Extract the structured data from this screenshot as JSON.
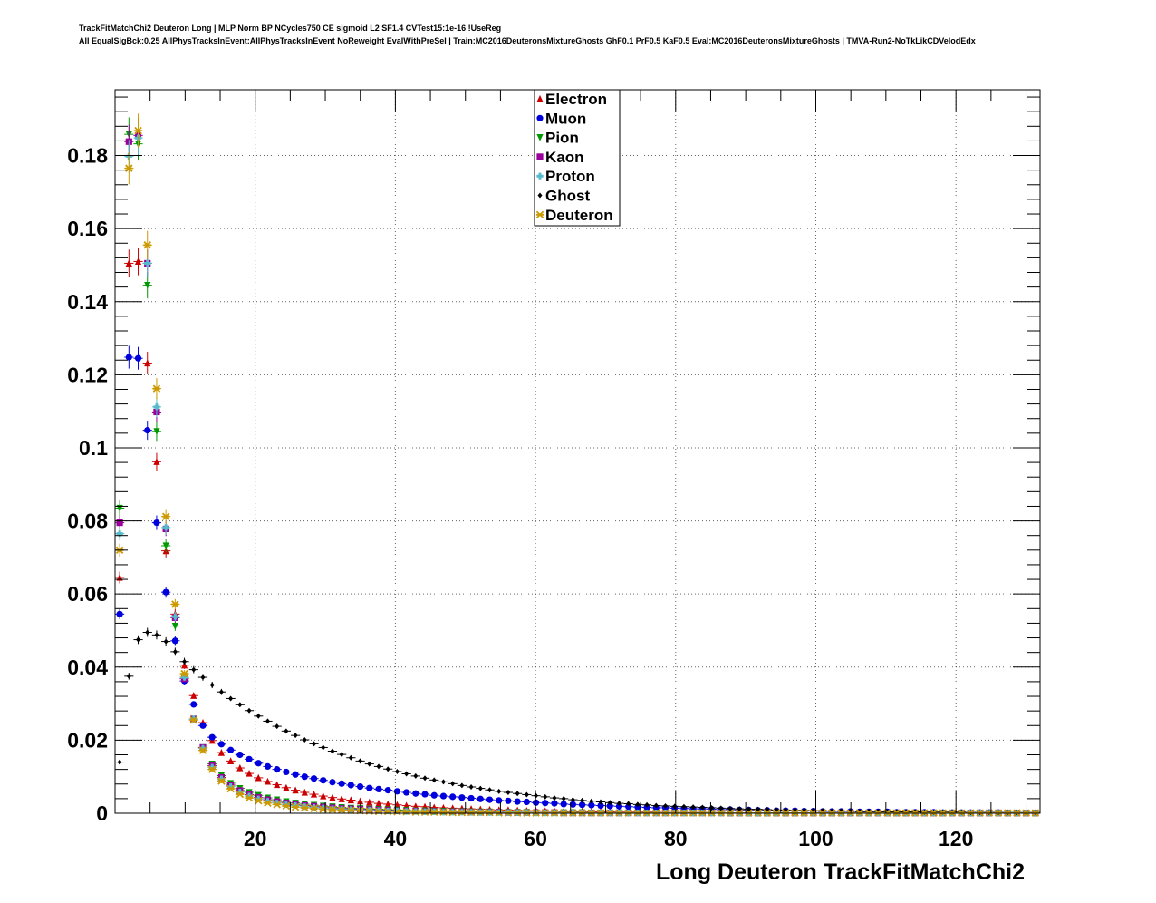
{
  "chart_data": {
    "type": "scatter",
    "title_line1": "TrackFitMatchChi2 Deuteron Long | MLP Norm BP NCycles750 CE sigmoid L2 SF1.4 CVTest15:1e-16 !UseReg",
    "title_line2": "All EqualSigBck:0.25 AllPhysTracksInEvent:AllPhysTracksInEvent NoReweight EvalWithPreSel | Train:MC2016DeuteronsMixtureGhosts GhF0.1 PrF0.5 KaF0.5 Eval:MC2016DeuteronsMixtureGhosts | TMVA-Run2-NoTkLikCDVelodEdx",
    "xlabel": "Long Deuteron TrackFitMatchChi2",
    "ylabel": "",
    "xlim": [
      0,
      132
    ],
    "ylim": [
      0,
      0.198
    ],
    "xticks": [
      20,
      40,
      60,
      80,
      100,
      120
    ],
    "xtick_labels": [
      "20",
      "40",
      "60",
      "80",
      "100",
      "120"
    ],
    "yticks": [
      0,
      0.02,
      0.04,
      0.06,
      0.08,
      0.1,
      0.12,
      0.14,
      0.16,
      0.18
    ],
    "ytick_labels": [
      "0",
      "0.02",
      "0.04",
      "0.06",
      "0.08",
      "0.1",
      "0.12",
      "0.14",
      "0.16",
      "0.18"
    ],
    "grid": true,
    "legend_position": "top-center",
    "bin_width": 1.32,
    "x": [
      0.66,
      1.98,
      3.3,
      4.62,
      5.94,
      7.26,
      8.58,
      9.9,
      11.22,
      12.54,
      13.86,
      15.18,
      16.5,
      17.82,
      19.14,
      20.46,
      21.78,
      23.1,
      24.42,
      25.74,
      27.06,
      28.38,
      29.7,
      31.02,
      32.34,
      33.66,
      34.98,
      36.3,
      37.62,
      38.94,
      40.26,
      41.58,
      42.9,
      44.22,
      45.54,
      46.86,
      48.18,
      49.5,
      50.82,
      52.14,
      53.46,
      54.78,
      56.1,
      57.42,
      58.74,
      60.06,
      61.38,
      62.7,
      64.02,
      65.34,
      66.66,
      67.98,
      69.3,
      70.62,
      71.94,
      73.26,
      74.58,
      75.9,
      77.22,
      78.54,
      79.86,
      81.18,
      82.5,
      83.82,
      85.14,
      86.46,
      87.78,
      89.1,
      90.42,
      91.74,
      93.06,
      94.38,
      95.7,
      97.02,
      98.34,
      99.66,
      100.98,
      102.3,
      103.62,
      104.94,
      106.26,
      107.58,
      108.9,
      110.22,
      111.54,
      112.86,
      114.18,
      115.5,
      116.82,
      118.14,
      119.46,
      120.78,
      122.1,
      123.42,
      124.74,
      126.06,
      127.38,
      128.7,
      130.02,
      131.34
    ],
    "series": [
      {
        "name": "Electron",
        "color": "#cc0000",
        "marker": "triangle-up",
        "values": [
          0.0645,
          0.1505,
          0.151,
          0.1232,
          0.0962,
          0.0718,
          0.0545,
          0.0405,
          0.0322,
          0.0248,
          0.0199,
          0.0166,
          0.0143,
          0.0124,
          0.0109,
          0.0097,
          0.0087,
          0.0078,
          0.007,
          0.0063,
          0.0057,
          0.0052,
          0.0047,
          0.0043,
          0.0039,
          0.0036,
          0.0033,
          0.003,
          0.0027,
          0.0025,
          0.0023,
          0.0021,
          0.0019,
          0.0018,
          0.0016,
          0.0015,
          0.0014,
          0.0013,
          0.0012,
          0.0011,
          0.001,
          0.0009,
          0.0009,
          0.0008,
          0.0007,
          0.0007,
          0.0006,
          0.0006,
          0.0005,
          0.0005,
          0.0005,
          0.0004,
          0.0004,
          0.0004,
          0.0003,
          0.0003,
          0.0003,
          0.0003,
          0.0003,
          0.0002,
          0.0002,
          0.0002,
          0.0002,
          0.0002,
          0.0002,
          0.0002,
          0.0001,
          0.0001,
          0.0001,
          0.0001,
          0.0001,
          0.0001,
          0.0001,
          0.0001,
          0.0001,
          0.0001,
          0.0001,
          0.0001,
          0.0001,
          0.0001,
          0.0001,
          0.0001,
          0.0001,
          0.0001,
          0.0001,
          0.0001,
          0.0001,
          0.0001,
          0.0001,
          0.0001,
          0.0001,
          0.0001,
          0.0001,
          0.0001,
          0.0001,
          0.0001,
          0.0001,
          0.0001,
          0.0001,
          0.0001
        ]
      },
      {
        "name": "Muon",
        "color": "#0000dd",
        "marker": "circle",
        "values": [
          0.0545,
          0.1248,
          0.1245,
          0.1048,
          0.0795,
          0.0605,
          0.0472,
          0.0362,
          0.0298,
          0.024,
          0.0208,
          0.0189,
          0.0173,
          0.016,
          0.0148,
          0.0137,
          0.0128,
          0.012,
          0.0113,
          0.0106,
          0.01,
          0.0095,
          0.009,
          0.0085,
          0.0081,
          0.0077,
          0.0073,
          0.0069,
          0.0066,
          0.0063,
          0.006,
          0.0057,
          0.0054,
          0.0052,
          0.0049,
          0.0047,
          0.0045,
          0.0043,
          0.0041,
          0.0039,
          0.0037,
          0.0035,
          0.0034,
          0.0032,
          0.0031,
          0.0029,
          0.0028,
          0.0027,
          0.0025,
          0.0024,
          0.0023,
          0.0022,
          0.0021,
          0.002,
          0.0019,
          0.0018,
          0.0017,
          0.0016,
          0.0015,
          0.0015,
          0.0014,
          0.0013,
          0.0012,
          0.0012,
          0.0011,
          0.001,
          0.001,
          0.0009,
          0.0009,
          0.0008,
          0.0008,
          0.0007,
          0.0007,
          0.0007,
          0.0006,
          0.0006,
          0.0005,
          0.0005,
          0.0005,
          0.0005,
          0.0004,
          0.0004,
          0.0004,
          0.0004,
          0.0003,
          0.0003,
          0.0003,
          0.0003,
          0.0003,
          0.0002,
          0.0002,
          0.0002,
          0.0002,
          0.0002,
          0.0002,
          0.0002,
          0.0001,
          0.0001,
          0.0001,
          0.0001
        ]
      },
      {
        "name": "Pion",
        "color": "#009900",
        "marker": "triangle-down",
        "values": [
          0.0835,
          0.1858,
          0.1832,
          0.1445,
          0.1045,
          0.0732,
          0.0512,
          0.0372,
          0.0258,
          0.018,
          0.0135,
          0.0103,
          0.0082,
          0.0068,
          0.0057,
          0.0049,
          0.0042,
          0.0037,
          0.0032,
          0.0028,
          0.0025,
          0.0022,
          0.002,
          0.0018,
          0.0016,
          0.0014,
          0.0013,
          0.0012,
          0.0011,
          0.001,
          0.0009,
          0.0008,
          0.0007,
          0.0007,
          0.0006,
          0.0006,
          0.0005,
          0.0005,
          0.0004,
          0.0004,
          0.0004,
          0.0003,
          0.0003,
          0.0003,
          0.0003,
          0.0002,
          0.0002,
          0.0002,
          0.0002,
          0.0002,
          0.0002,
          0.0001,
          0.0001,
          0.0001,
          0.0001,
          0.0001,
          0.0001,
          0.0001,
          0.0001,
          0.0001,
          0.0001,
          0.0001,
          0.0001,
          0.0001,
          0.0001,
          0.0001,
          0.0001,
          0.0001,
          0.0001,
          0.0001,
          0.0001,
          0.0001,
          0.0001,
          0.0001,
          0.0001,
          0.0001,
          0.0001,
          0.0001,
          0.0001,
          0.0001,
          0.0001,
          0.0001,
          0.0001,
          0.0001,
          0.0001,
          0.0001,
          0.0001,
          0.0001,
          0.0001,
          0.0001,
          0.0001,
          0.0001,
          0.0001,
          0.0001,
          0.0001,
          0.0001,
          0.0001,
          0.0001,
          0.0001,
          0.0001
        ]
      },
      {
        "name": "Kaon",
        "color": "#990099",
        "marker": "square",
        "values": [
          0.0795,
          0.1838,
          0.1855,
          0.1505,
          0.1098,
          0.0778,
          0.0535,
          0.0368,
          0.0258,
          0.018,
          0.013,
          0.0098,
          0.0077,
          0.0062,
          0.0051,
          0.0043,
          0.0037,
          0.0032,
          0.0028,
          0.0024,
          0.0021,
          0.0019,
          0.0017,
          0.0015,
          0.0013,
          0.0012,
          0.0011,
          0.001,
          0.0009,
          0.0008,
          0.0007,
          0.0006,
          0.0006,
          0.0005,
          0.0005,
          0.0004,
          0.0004,
          0.0004,
          0.0003,
          0.0003,
          0.0003,
          0.0003,
          0.0002,
          0.0002,
          0.0002,
          0.0002,
          0.0002,
          0.0002,
          0.0001,
          0.0001,
          0.0001,
          0.0001,
          0.0001,
          0.0001,
          0.0001,
          0.0001,
          0.0001,
          0.0001,
          0.0001,
          0.0001,
          0.0001,
          0.0001,
          0.0001,
          0.0001,
          0.0001,
          0.0001,
          0.0001,
          0.0001,
          0.0001,
          0.0001,
          0.0001,
          0.0001,
          0.0001,
          0.0001,
          0.0001,
          0.0001,
          0.0001,
          0.0001,
          0.0001,
          0.0001,
          0.0001,
          0.0001,
          0.0001,
          0.0001,
          0.0001,
          0.0001,
          0.0001,
          0.0001,
          0.0001,
          0.0001,
          0.0001,
          0.0001,
          0.0001,
          0.0001,
          0.0001,
          0.0001,
          0.0001,
          0.0001,
          0.0001,
          0.0001
        ]
      },
      {
        "name": "Proton",
        "color": "#55bbcc",
        "marker": "cross",
        "values": [
          0.0765,
          0.1798,
          0.1848,
          0.1505,
          0.1112,
          0.0782,
          0.0538,
          0.0372,
          0.0258,
          0.0178,
          0.0126,
          0.0094,
          0.0073,
          0.0058,
          0.0047,
          0.0039,
          0.0033,
          0.0028,
          0.0024,
          0.0021,
          0.0018,
          0.0016,
          0.0014,
          0.0012,
          0.0011,
          0.001,
          0.0009,
          0.0008,
          0.0007,
          0.0006,
          0.0006,
          0.0005,
          0.0005,
          0.0004,
          0.0004,
          0.0003,
          0.0003,
          0.0003,
          0.0003,
          0.0002,
          0.0002,
          0.0002,
          0.0002,
          0.0002,
          0.0002,
          0.0001,
          0.0001,
          0.0001,
          0.0001,
          0.0001,
          0.0001,
          0.0001,
          0.0001,
          0.0001,
          0.0001,
          0.0001,
          0.0001,
          0.0001,
          0.0001,
          0.0001,
          0.0001,
          0.0001,
          0.0001,
          0.0001,
          0.0001,
          0.0001,
          0.0001,
          0.0001,
          0.0001,
          0.0001,
          0.0001,
          0.0001,
          0.0001,
          0.0001,
          0.0001,
          0.0001,
          0.0001,
          0.0001,
          0.0001,
          0.0001,
          0.0001,
          0.0001,
          0.0001,
          0.0001,
          0.0001,
          0.0001,
          0.0001,
          0.0001,
          0.0001,
          0.0001,
          0.0001,
          0.0001,
          0.0001,
          0.0001,
          0.0001,
          0.0001,
          0.0001,
          0.0001,
          0.0001,
          0.0001
        ]
      },
      {
        "name": "Ghost",
        "color": "#000000",
        "marker": "diamond",
        "values": [
          0.014,
          0.0375,
          0.0475,
          0.0495,
          0.0488,
          0.047,
          0.0442,
          0.0415,
          0.0393,
          0.0372,
          0.0351,
          0.0332,
          0.0314,
          0.0297,
          0.0281,
          0.0266,
          0.0252,
          0.0238,
          0.0225,
          0.0213,
          0.0201,
          0.019,
          0.018,
          0.017,
          0.0161,
          0.0152,
          0.0143,
          0.0135,
          0.0128,
          0.0121,
          0.0114,
          0.0108,
          0.0102,
          0.0096,
          0.0091,
          0.0086,
          0.0081,
          0.0076,
          0.0072,
          0.0068,
          0.0064,
          0.006,
          0.0057,
          0.0054,
          0.0051,
          0.0048,
          0.0045,
          0.0042,
          0.004,
          0.0037,
          0.0035,
          0.0033,
          0.0031,
          0.0029,
          0.0027,
          0.0026,
          0.0024,
          0.0023,
          0.0021,
          0.002,
          0.0019,
          0.0018,
          0.0017,
          0.0016,
          0.0015,
          0.0014,
          0.0013,
          0.0012,
          0.0011,
          0.0011,
          0.001,
          0.0009,
          0.0009,
          0.0008,
          0.0008,
          0.0007,
          0.0007,
          0.0006,
          0.0006,
          0.0006,
          0.0005,
          0.0005,
          0.0005,
          0.0004,
          0.0004,
          0.0004,
          0.0004,
          0.0003,
          0.0003,
          0.0003,
          0.0003,
          0.0003,
          0.0002,
          0.0002,
          0.0002,
          0.0002,
          0.0002,
          0.0002,
          0.0002,
          0.0002
        ]
      },
      {
        "name": "Deuteron",
        "color": "#cc9900",
        "marker": "star",
        "values": [
          0.072,
          0.1765,
          0.1868,
          0.1555,
          0.1162,
          0.0812,
          0.0572,
          0.0382,
          0.0255,
          0.0172,
          0.012,
          0.0088,
          0.0067,
          0.0052,
          0.0042,
          0.0034,
          0.0028,
          0.0024,
          0.002,
          0.0017,
          0.0015,
          0.0013,
          0.0011,
          0.001,
          0.0009,
          0.0008,
          0.0007,
          0.0006,
          0.0005,
          0.0005,
          0.0004,
          0.0004,
          0.0003,
          0.0003,
          0.0003,
          0.0003,
          0.0002,
          0.0002,
          0.0002,
          0.0002,
          0.0002,
          0.0001,
          0.0001,
          0.0001,
          0.0001,
          0.0001,
          0.0001,
          0.0001,
          0.0001,
          0.0001,
          0.0001,
          0.0001,
          0.0001,
          0.0001,
          0.0001,
          0.0001,
          0.0001,
          0.0001,
          0.0001,
          0.0001,
          0.0001,
          0.0001,
          0.0001,
          0.0001,
          0.0001,
          0.0001,
          0.0001,
          0.0001,
          0.0001,
          0.0001,
          0.0001,
          0.0001,
          0.0001,
          0.0001,
          0.0001,
          0.0001,
          0.0001,
          0.0001,
          0.0001,
          0.0001,
          0.0001,
          0.0001,
          0.0001,
          0.0001,
          0.0001,
          0.0001,
          0.0001,
          0.0001,
          0.0001,
          0.0001,
          0.0001,
          0.0001,
          0.0001,
          0.0001,
          0.0001,
          0.0001,
          0.0001,
          0.0001,
          0.0001,
          0.0001
        ]
      }
    ]
  }
}
